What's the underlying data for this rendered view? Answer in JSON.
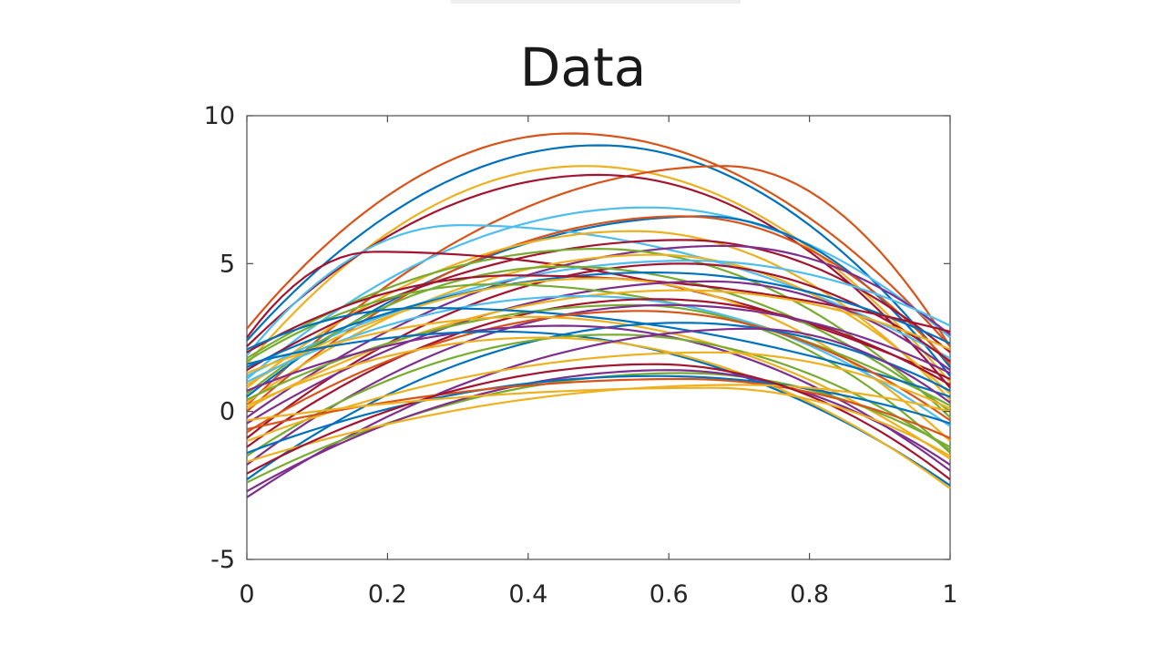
{
  "chart_data": {
    "type": "line",
    "title": "Data",
    "xlabel": "",
    "ylabel": "",
    "xlim": [
      0,
      1
    ],
    "ylim": [
      -5,
      10
    ],
    "x_ticks": [
      "0",
      "0.2",
      "0.4",
      "0.6",
      "0.8",
      "1"
    ],
    "y_ticks": [
      "-5",
      "0",
      "5",
      "10"
    ],
    "grid": false,
    "legend": "none",
    "palette": [
      "#0072BD",
      "#D95319",
      "#EDB120",
      "#7E2F8E",
      "#77AC30",
      "#4DBEEE",
      "#A2142F"
    ],
    "series": [
      {
        "a": 2.8,
        "b": 9.4,
        "c": 2.2,
        "peak": 0.46,
        "color": "#D95319"
      },
      {
        "a": 2.4,
        "b": 9.0,
        "c": 1.5,
        "peak": 0.5,
        "color": "#0072BD"
      },
      {
        "a": 1.6,
        "b": 8.3,
        "c": 1.0,
        "peak": 0.48,
        "color": "#EDB120"
      },
      {
        "a": 0.2,
        "b": 8.3,
        "c": 2.2,
        "peak": 0.68,
        "color": "#D95319"
      },
      {
        "a": 2.2,
        "b": 8.0,
        "c": 0.8,
        "peak": 0.5,
        "color": "#A2142F"
      },
      {
        "a": 1.1,
        "b": 6.9,
        "c": 2.5,
        "peak": 0.57,
        "color": "#4DBEEE"
      },
      {
        "a": 0.5,
        "b": 6.6,
        "c": 1.2,
        "peak": 0.65,
        "color": "#0072BD"
      },
      {
        "a": 1.9,
        "b": 6.3,
        "c": 1.8,
        "peak": 0.3,
        "color": "#4DBEEE"
      },
      {
        "a": 0.0,
        "b": 6.6,
        "c": 1.6,
        "peak": 0.62,
        "color": "#D95319"
      },
      {
        "a": 0.8,
        "b": 6.1,
        "c": 0.4,
        "peak": 0.55,
        "color": "#EDB120"
      },
      {
        "a": 1.4,
        "b": 5.8,
        "c": 2.0,
        "peak": 0.62,
        "color": "#A2142F"
      },
      {
        "a": -0.2,
        "b": 5.6,
        "c": 2.6,
        "peak": 0.68,
        "color": "#7E2F8E"
      },
      {
        "a": 1.8,
        "b": 5.5,
        "c": -0.2,
        "peak": 0.5,
        "color": "#77AC30"
      },
      {
        "a": 2.5,
        "b": 5.4,
        "c": 1.1,
        "peak": 0.18,
        "color": "#A2142F"
      },
      {
        "a": 0.3,
        "b": 5.3,
        "c": 0.6,
        "peak": 0.58,
        "color": "#EDB120"
      },
      {
        "a": 1.2,
        "b": 5.1,
        "c": 2.9,
        "peak": 0.63,
        "color": "#4DBEEE"
      },
      {
        "a": -0.9,
        "b": 5.0,
        "c": 1.7,
        "peak": 0.62,
        "color": "#A2142F"
      },
      {
        "a": 0.6,
        "b": 4.9,
        "c": 0.0,
        "peak": 0.45,
        "color": "#77AC30"
      },
      {
        "a": 1.5,
        "b": 4.7,
        "c": 2.3,
        "peak": 0.58,
        "color": "#0072BD"
      },
      {
        "a": 2.0,
        "b": 4.6,
        "c": 2.7,
        "peak": 0.38,
        "color": "#A2142F"
      },
      {
        "a": 0.9,
        "b": 4.5,
        "c": -1.0,
        "peak": 0.5,
        "color": "#EDB120"
      },
      {
        "a": -0.4,
        "b": 4.4,
        "c": 1.4,
        "peak": 0.66,
        "color": "#7E2F8E"
      },
      {
        "a": 1.7,
        "b": 4.3,
        "c": 0.2,
        "peak": 0.35,
        "color": "#77AC30"
      },
      {
        "a": 0.1,
        "b": 4.1,
        "c": 2.1,
        "peak": 0.62,
        "color": "#EDB120"
      },
      {
        "a": 1.0,
        "b": 3.9,
        "c": -0.5,
        "peak": 0.48,
        "color": "#4DBEEE"
      },
      {
        "a": -1.2,
        "b": 3.8,
        "c": 0.9,
        "peak": 0.58,
        "color": "#A2142F"
      },
      {
        "a": 0.4,
        "b": 3.6,
        "c": -1.4,
        "peak": 0.55,
        "color": "#77AC30"
      },
      {
        "a": -1.8,
        "b": 3.6,
        "c": 1.3,
        "peak": 0.6,
        "color": "#7E2F8E"
      },
      {
        "a": 2.1,
        "b": 3.5,
        "c": 0.5,
        "peak": 0.25,
        "color": "#0072BD"
      },
      {
        "a": -0.7,
        "b": 3.4,
        "c": -0.3,
        "peak": 0.56,
        "color": "#D95319"
      },
      {
        "a": 1.3,
        "b": 3.2,
        "c": -1.6,
        "peak": 0.4,
        "color": "#EDB120"
      },
      {
        "a": -2.3,
        "b": 3.0,
        "c": 0.7,
        "peak": 0.62,
        "color": "#0072BD"
      },
      {
        "a": 0.7,
        "b": 2.9,
        "c": -2.0,
        "peak": 0.45,
        "color": "#7E2F8E"
      },
      {
        "a": 1.6,
        "b": 2.7,
        "c": -2.5,
        "peak": 0.36,
        "color": "#0072BD"
      },
      {
        "a": -1.5,
        "b": 2.6,
        "c": -1.3,
        "peak": 0.52,
        "color": "#77AC30"
      },
      {
        "a": 0.2,
        "b": 2.5,
        "c": -2.6,
        "peak": 0.42,
        "color": "#EDB120"
      },
      {
        "a": -2.9,
        "b": 2.8,
        "c": 0.3,
        "peak": 0.72,
        "color": "#7E2F8E"
      },
      {
        "a": -1.0,
        "b": 2.0,
        "c": 0.1,
        "peak": 0.66,
        "color": "#EDB120"
      },
      {
        "a": -2.4,
        "b": 1.3,
        "c": -1.2,
        "peak": 0.62,
        "color": "#77AC30"
      },
      {
        "a": -2.7,
        "b": 1.4,
        "c": -1.8,
        "peak": 0.6,
        "color": "#7E2F8E"
      },
      {
        "a": -1.4,
        "b": 1.2,
        "c": -0.4,
        "peak": 0.58,
        "color": "#0072BD"
      },
      {
        "a": -0.6,
        "b": 1.1,
        "c": -0.9,
        "peak": 0.62,
        "color": "#D95319"
      },
      {
        "a": -1.7,
        "b": 0.9,
        "c": 0.0,
        "peak": 0.7,
        "color": "#EDB120"
      },
      {
        "a": -2.1,
        "b": 1.6,
        "c": -2.3,
        "peak": 0.58,
        "color": "#A2142F"
      },
      {
        "a": -0.3,
        "b": 0.8,
        "c": -1.5,
        "peak": 0.66,
        "color": "#EDB120"
      }
    ]
  }
}
